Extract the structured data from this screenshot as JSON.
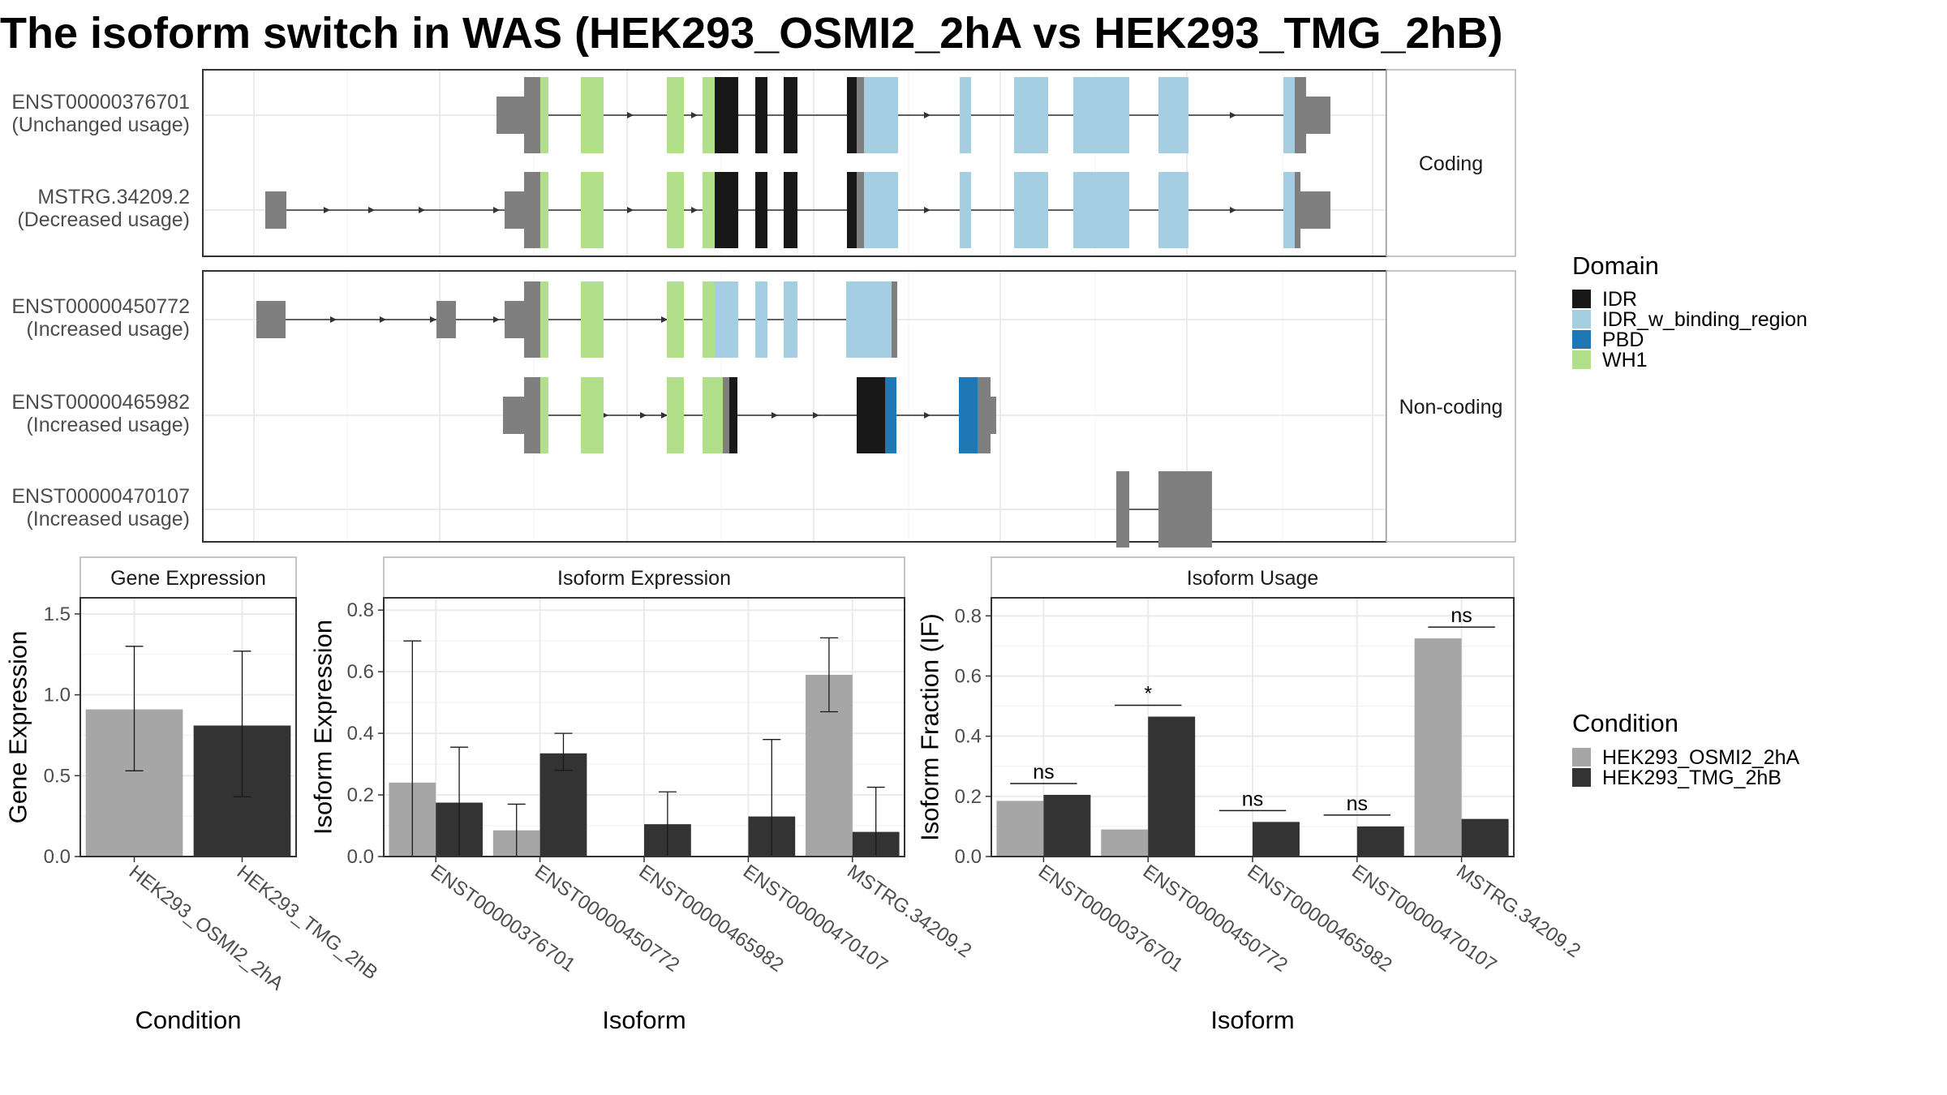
{
  "title": "The isoform switch in WAS (HEK293_OSMI2_2hA vs HEK293_TMG_2hB)",
  "transcripts": {
    "facets": [
      {
        "label": "Coding",
        "rows": [
          0,
          1
        ]
      },
      {
        "label": "Non-coding",
        "rows": [
          2,
          3,
          4
        ]
      }
    ],
    "rows": [
      {
        "id": "ENST00000376701",
        "usage": "(Unchanged usage)"
      },
      {
        "id": "MSTRG.34209.2",
        "usage": "(Decreased usage)"
      },
      {
        "id": "ENST00000450772",
        "usage": "(Increased usage)"
      },
      {
        "id": "ENST00000465982",
        "usage": "(Increased usage)"
      },
      {
        "id": "ENST00000470107",
        "usage": "(Increased usage)"
      }
    ]
  },
  "domain_legend": {
    "title": "Domain",
    "items": [
      {
        "label": "IDR",
        "color": "#181818"
      },
      {
        "label": "IDR_w_binding_region",
        "color": "#a6cee3"
      },
      {
        "label": "PBD",
        "color": "#1f78b4"
      },
      {
        "label": "WH1",
        "color": "#b2df8a"
      }
    ]
  },
  "condition_legend": {
    "title": "Condition",
    "items": [
      {
        "label": "HEK293_OSMI2_2hA",
        "color": "#a6a6a6"
      },
      {
        "label": "HEK293_TMG_2hB",
        "color": "#333333"
      }
    ]
  },
  "chart_data": [
    {
      "type": "bar",
      "title": "Gene Expression",
      "xlabel": "Condition",
      "ylabel": "Gene Expression",
      "categories": [
        "HEK293_OSMI2_2hA",
        "HEK293_TMG_2hB"
      ],
      "values": [
        0.91,
        0.81
      ],
      "error_low": [
        0.53,
        0.37
      ],
      "error_high": [
        1.3,
        1.27
      ],
      "ylim": [
        0,
        1.6
      ],
      "yticks": [
        0.0,
        0.5,
        1.0,
        1.5
      ],
      "grid": true
    },
    {
      "type": "bar",
      "title": "Isoform Expression",
      "xlabel": "Isoform",
      "ylabel": "Isoform Expression",
      "categories": [
        "ENST00000376701",
        "ENST00000450772",
        "ENST00000465982",
        "ENST00000470107",
        "MSTRG.34209.2"
      ],
      "series": [
        {
          "name": "HEK293_OSMI2_2hA",
          "values": [
            0.24,
            0.085,
            0.0,
            0.0,
            0.59
          ],
          "error_low": [
            0.0,
            0.0,
            null,
            null,
            0.47
          ],
          "error_high": [
            0.7,
            0.17,
            null,
            null,
            0.71
          ]
        },
        {
          "name": "HEK293_TMG_2hB",
          "values": [
            0.175,
            0.335,
            0.105,
            0.13,
            0.08
          ],
          "error_low": [
            0.0,
            0.28,
            0.0,
            0.0,
            0.0
          ],
          "error_high": [
            0.355,
            0.4,
            0.21,
            0.38,
            0.225
          ]
        }
      ],
      "ylim": [
        0,
        0.84
      ],
      "yticks": [
        0.0,
        0.2,
        0.4,
        0.6,
        0.8
      ],
      "grid": true
    },
    {
      "type": "bar",
      "title": "Isoform Usage",
      "xlabel": "Isoform",
      "ylabel": "Isoform Fraction (IF)",
      "categories": [
        "ENST00000376701",
        "ENST00000450772",
        "ENST00000465982",
        "ENST00000470107",
        "MSTRG.34209.2"
      ],
      "series": [
        {
          "name": "HEK293_OSMI2_2hA",
          "values": [
            0.185,
            0.09,
            0.0,
            0.0,
            0.725
          ]
        },
        {
          "name": "HEK293_TMG_2hB",
          "values": [
            0.205,
            0.465,
            0.115,
            0.1,
            0.125
          ]
        }
      ],
      "significance": [
        "ns",
        "*",
        "ns",
        "ns",
        "ns"
      ],
      "ylim": [
        0,
        0.86
      ],
      "yticks": [
        0.0,
        0.2,
        0.4,
        0.6,
        0.8
      ],
      "grid": true
    }
  ]
}
